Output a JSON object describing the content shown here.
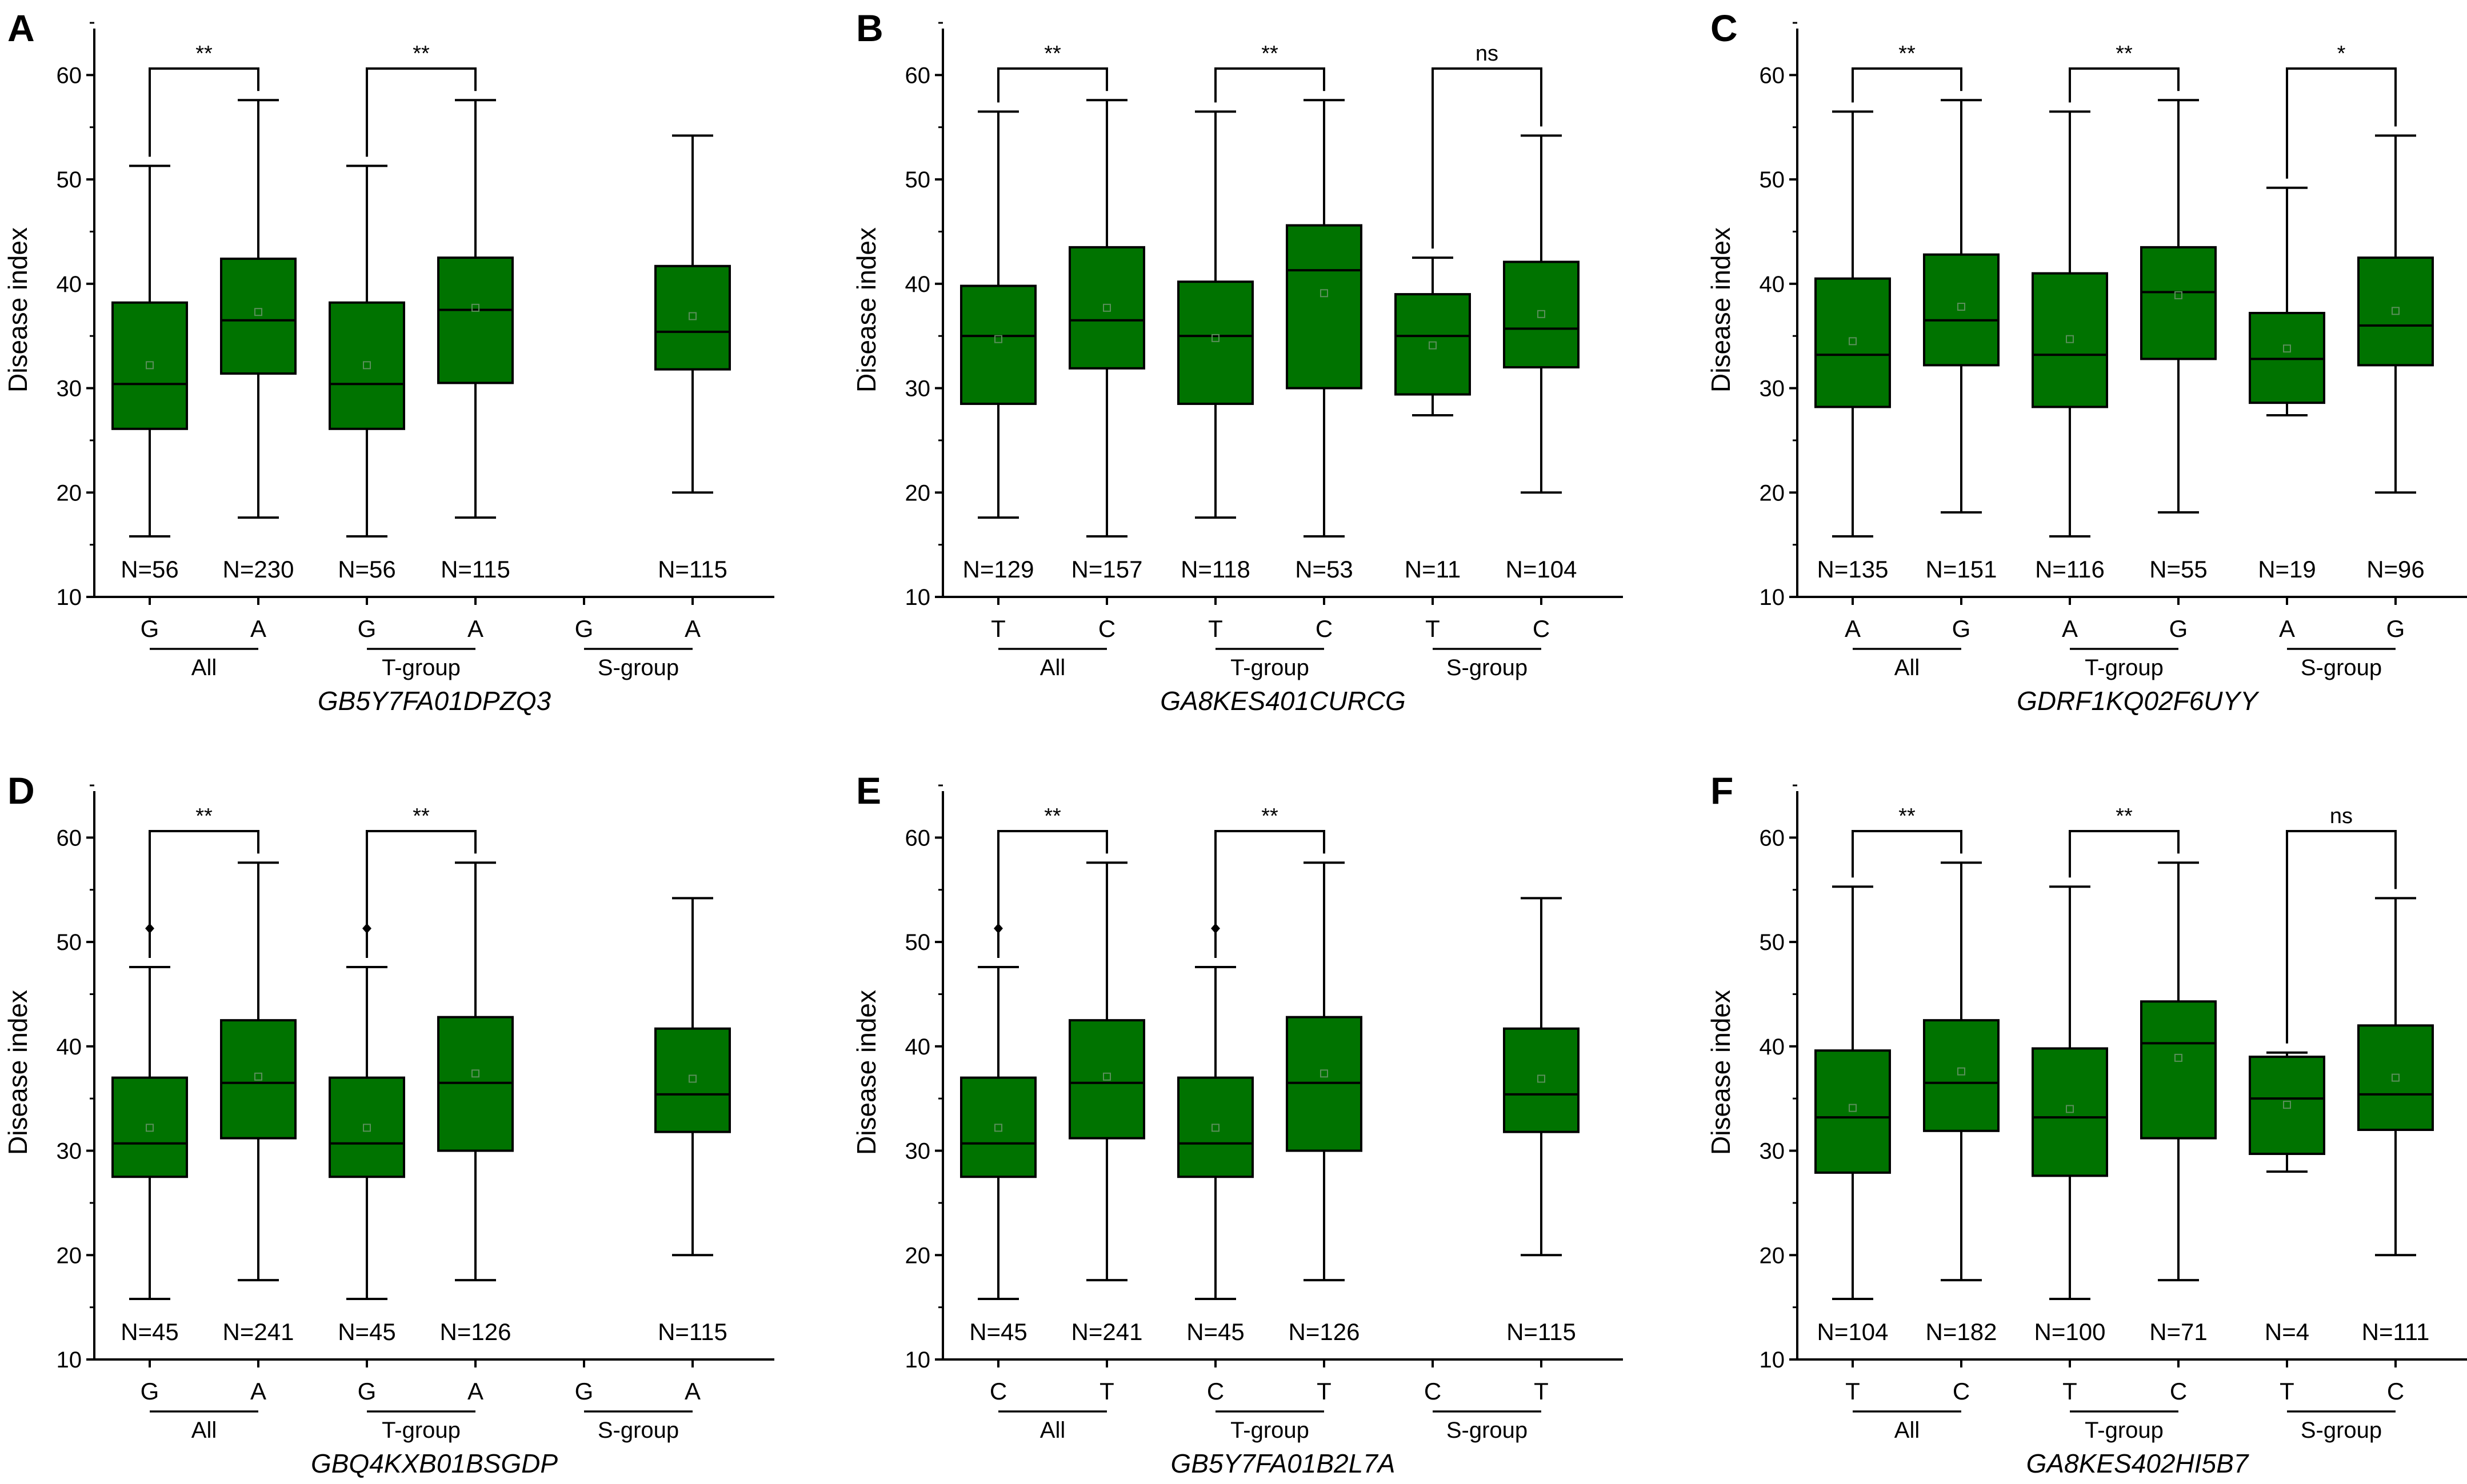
{
  "y_axis_label": "Disease index",
  "chart_data": [
    {
      "type": "box",
      "panel": "A",
      "gene": "GB5Y7FA01DPZQ3",
      "ylabel": "Disease index",
      "ylim": [
        10,
        65
      ],
      "yticks": [
        10,
        20,
        30,
        40,
        50,
        60
      ],
      "groups": [
        "All",
        "T-group",
        "S-group"
      ],
      "boxes": [
        {
          "allele": "G",
          "n": "N=56",
          "min": 15.8,
          "q1": 26.1,
          "median": 30.4,
          "q3": 38.2,
          "max": 51.3,
          "mean": 32.2,
          "outliers": []
        },
        {
          "allele": "A",
          "n": "N=230",
          "min": 17.6,
          "q1": 31.4,
          "median": 36.5,
          "q3": 42.4,
          "max": 57.6,
          "mean": 37.3,
          "outliers": []
        },
        {
          "allele": "G",
          "n": "N=56",
          "min": 15.8,
          "q1": 26.1,
          "median": 30.4,
          "q3": 38.2,
          "max": 51.3,
          "mean": 32.2,
          "outliers": []
        },
        {
          "allele": "A",
          "n": "N=115",
          "min": 17.6,
          "q1": 30.5,
          "median": 37.5,
          "q3": 42.5,
          "max": 57.6,
          "mean": 37.7,
          "outliers": []
        },
        {
          "allele": "G",
          "n": "",
          "empty": true
        },
        {
          "allele": "A",
          "n": "N=115",
          "min": 20.0,
          "q1": 31.8,
          "median": 35.4,
          "q3": 41.7,
          "max": 54.2,
          "mean": 36.9,
          "outliers": []
        }
      ],
      "significance": [
        {
          "group": 0,
          "label": "**"
        },
        {
          "group": 1,
          "label": "**"
        }
      ]
    },
    {
      "type": "box",
      "panel": "B",
      "gene": "GA8KES401CURCG",
      "ylabel": "Disease index",
      "ylim": [
        10,
        65
      ],
      "yticks": [
        10,
        20,
        30,
        40,
        50,
        60
      ],
      "groups": [
        "All",
        "T-group",
        "S-group"
      ],
      "boxes": [
        {
          "allele": "T",
          "n": "N=129",
          "min": 17.6,
          "q1": 28.5,
          "median": 35.0,
          "q3": 39.8,
          "max": 56.5,
          "mean": 34.7,
          "outliers": []
        },
        {
          "allele": "C",
          "n": "N=157",
          "min": 15.8,
          "q1": 31.9,
          "median": 36.5,
          "q3": 43.5,
          "max": 57.6,
          "mean": 37.7,
          "outliers": []
        },
        {
          "allele": "T",
          "n": "N=118",
          "min": 17.6,
          "q1": 28.5,
          "median": 35.0,
          "q3": 40.2,
          "max": 56.5,
          "mean": 34.8,
          "outliers": []
        },
        {
          "allele": "C",
          "n": "N=53",
          "min": 15.8,
          "q1": 30.0,
          "median": 41.3,
          "q3": 45.6,
          "max": 57.6,
          "mean": 39.1,
          "outliers": []
        },
        {
          "allele": "T",
          "n": "N=11",
          "min": 27.4,
          "q1": 29.4,
          "median": 35.0,
          "q3": 39.0,
          "max": 42.5,
          "mean": 34.1,
          "outliers": []
        },
        {
          "allele": "C",
          "n": "N=104",
          "min": 20.0,
          "q1": 32.0,
          "median": 35.7,
          "q3": 42.1,
          "max": 54.2,
          "mean": 37.1,
          "outliers": []
        }
      ],
      "significance": [
        {
          "group": 0,
          "label": "**"
        },
        {
          "group": 1,
          "label": "**"
        },
        {
          "group": 2,
          "label": "ns"
        }
      ]
    },
    {
      "type": "box",
      "panel": "C",
      "gene": "GDRF1KQ02F6UYY",
      "ylabel": "Disease index",
      "ylim": [
        10,
        65
      ],
      "yticks": [
        10,
        20,
        30,
        40,
        50,
        60
      ],
      "groups": [
        "All",
        "T-group",
        "S-group"
      ],
      "boxes": [
        {
          "allele": "A",
          "n": "N=135",
          "min": 15.8,
          "q1": 28.2,
          "median": 33.2,
          "q3": 40.5,
          "max": 56.5,
          "mean": 34.5,
          "outliers": []
        },
        {
          "allele": "G",
          "n": "N=151",
          "min": 18.1,
          "q1": 32.2,
          "median": 36.5,
          "q3": 42.8,
          "max": 57.6,
          "mean": 37.8,
          "outliers": []
        },
        {
          "allele": "A",
          "n": "N=116",
          "min": 15.8,
          "q1": 28.2,
          "median": 33.2,
          "q3": 41.0,
          "max": 56.5,
          "mean": 34.7,
          "outliers": []
        },
        {
          "allele": "G",
          "n": "N=55",
          "min": 18.1,
          "q1": 32.8,
          "median": 39.2,
          "q3": 43.5,
          "max": 57.6,
          "mean": 38.9,
          "outliers": []
        },
        {
          "allele": "A",
          "n": "N=19",
          "min": 27.4,
          "q1": 28.6,
          "median": 32.8,
          "q3": 37.2,
          "max": 49.2,
          "mean": 33.8,
          "outliers": []
        },
        {
          "allele": "G",
          "n": "N=96",
          "min": 20.0,
          "q1": 32.2,
          "median": 36.0,
          "q3": 42.5,
          "max": 54.2,
          "mean": 37.4,
          "outliers": []
        }
      ],
      "significance": [
        {
          "group": 0,
          "label": "**"
        },
        {
          "group": 1,
          "label": "**"
        },
        {
          "group": 2,
          "label": "*"
        }
      ]
    },
    {
      "type": "box",
      "panel": "D",
      "gene": "GBQ4KXB01BSGDP",
      "ylabel": "Disease index",
      "ylim": [
        10,
        65
      ],
      "yticks": [
        10,
        20,
        30,
        40,
        50,
        60
      ],
      "groups": [
        "All",
        "T-group",
        "S-group"
      ],
      "boxes": [
        {
          "allele": "G",
          "n": "N=45",
          "min": 15.8,
          "q1": 27.5,
          "median": 30.7,
          "q3": 37.0,
          "max": 47.6,
          "mean": 32.2,
          "outliers": [
            51.3
          ]
        },
        {
          "allele": "A",
          "n": "N=241",
          "min": 17.6,
          "q1": 31.2,
          "median": 36.5,
          "q3": 42.5,
          "max": 57.6,
          "mean": 37.1,
          "outliers": []
        },
        {
          "allele": "G",
          "n": "N=45",
          "min": 15.8,
          "q1": 27.5,
          "median": 30.7,
          "q3": 37.0,
          "max": 47.6,
          "mean": 32.2,
          "outliers": [
            51.3
          ]
        },
        {
          "allele": "A",
          "n": "N=126",
          "min": 17.6,
          "q1": 30.0,
          "median": 36.5,
          "q3": 42.8,
          "max": 57.6,
          "mean": 37.4,
          "outliers": []
        },
        {
          "allele": "G",
          "n": "",
          "empty": true
        },
        {
          "allele": "A",
          "n": "N=115",
          "min": 20.0,
          "q1": 31.8,
          "median": 35.4,
          "q3": 41.7,
          "max": 54.2,
          "mean": 36.9,
          "outliers": []
        }
      ],
      "significance": [
        {
          "group": 0,
          "label": "**"
        },
        {
          "group": 1,
          "label": "**"
        }
      ]
    },
    {
      "type": "box",
      "panel": "E",
      "gene": "GB5Y7FA01B2L7A",
      "ylabel": "Disease index",
      "ylim": [
        10,
        65
      ],
      "yticks": [
        10,
        20,
        30,
        40,
        50,
        60
      ],
      "groups": [
        "All",
        "T-group",
        "S-group"
      ],
      "boxes": [
        {
          "allele": "C",
          "n": "N=45",
          "min": 15.8,
          "q1": 27.5,
          "median": 30.7,
          "q3": 37.0,
          "max": 47.6,
          "mean": 32.2,
          "outliers": [
            51.3
          ]
        },
        {
          "allele": "T",
          "n": "N=241",
          "min": 17.6,
          "q1": 31.2,
          "median": 36.5,
          "q3": 42.5,
          "max": 57.6,
          "mean": 37.1,
          "outliers": []
        },
        {
          "allele": "C",
          "n": "N=45",
          "min": 15.8,
          "q1": 27.5,
          "median": 30.7,
          "q3": 37.0,
          "max": 47.6,
          "mean": 32.2,
          "outliers": [
            51.3
          ]
        },
        {
          "allele": "T",
          "n": "N=126",
          "min": 17.6,
          "q1": 30.0,
          "median": 36.5,
          "q3": 42.8,
          "max": 57.6,
          "mean": 37.4,
          "outliers": []
        },
        {
          "allele": "C",
          "n": "",
          "empty": true
        },
        {
          "allele": "T",
          "n": "N=115",
          "min": 20.0,
          "q1": 31.8,
          "median": 35.4,
          "q3": 41.7,
          "max": 54.2,
          "mean": 36.9,
          "outliers": []
        }
      ],
      "significance": [
        {
          "group": 0,
          "label": "**"
        },
        {
          "group": 1,
          "label": "**"
        }
      ]
    },
    {
      "type": "box",
      "panel": "F",
      "gene": "GA8KES402HI5B7",
      "ylabel": "Disease index",
      "ylim": [
        10,
        65
      ],
      "yticks": [
        10,
        20,
        30,
        40,
        50,
        60
      ],
      "groups": [
        "All",
        "T-group",
        "S-group"
      ],
      "boxes": [
        {
          "allele": "T",
          "n": "N=104",
          "min": 15.8,
          "q1": 27.9,
          "median": 33.2,
          "q3": 39.6,
          "max": 55.3,
          "mean": 34.1,
          "outliers": []
        },
        {
          "allele": "C",
          "n": "N=182",
          "min": 17.6,
          "q1": 31.9,
          "median": 36.5,
          "q3": 42.5,
          "max": 57.6,
          "mean": 37.6,
          "outliers": []
        },
        {
          "allele": "T",
          "n": "N=100",
          "min": 15.8,
          "q1": 27.6,
          "median": 33.2,
          "q3": 39.8,
          "max": 55.3,
          "mean": 34.0,
          "outliers": []
        },
        {
          "allele": "C",
          "n": "N=71",
          "min": 17.6,
          "q1": 31.2,
          "median": 40.3,
          "q3": 44.3,
          "max": 57.6,
          "mean": 38.9,
          "outliers": []
        },
        {
          "allele": "T",
          "n": "N=4",
          "min": 28.0,
          "q1": 29.7,
          "median": 35.0,
          "q3": 39.0,
          "max": 39.4,
          "mean": 34.4,
          "outliers": []
        },
        {
          "allele": "C",
          "n": "N=111",
          "min": 20.0,
          "q1": 32.0,
          "median": 35.4,
          "q3": 42.0,
          "max": 54.2,
          "mean": 37.0,
          "outliers": []
        }
      ],
      "significance": [
        {
          "group": 0,
          "label": "**"
        },
        {
          "group": 1,
          "label": "**"
        },
        {
          "group": 2,
          "label": "ns"
        }
      ]
    }
  ]
}
